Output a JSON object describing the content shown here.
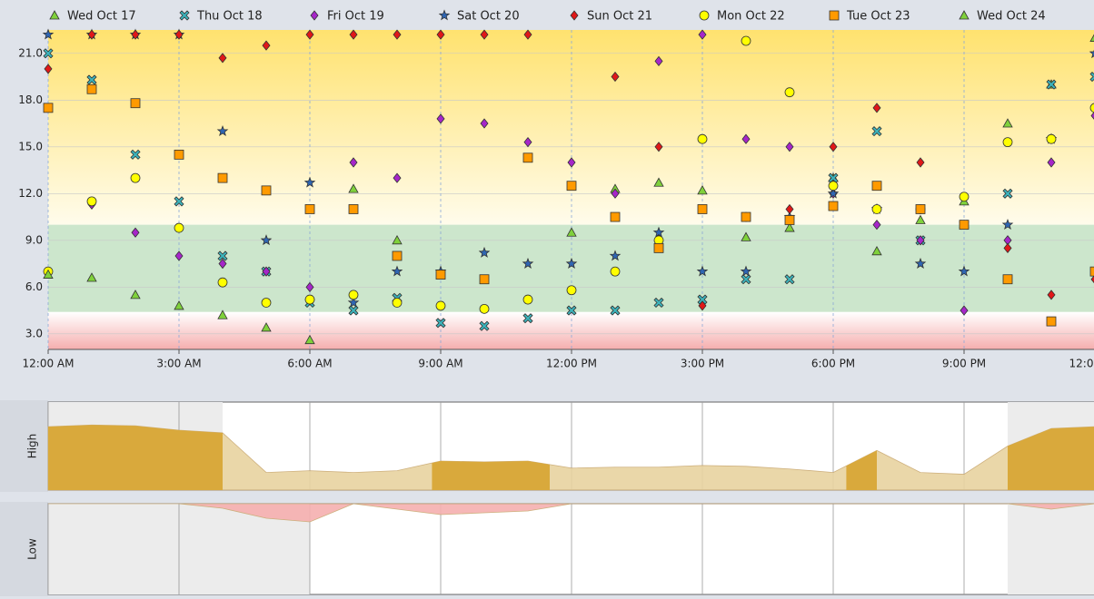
{
  "chart_data": [
    {
      "type": "scatter",
      "x": [
        0,
        1,
        2,
        3,
        4,
        5,
        6,
        7,
        8,
        9,
        10,
        11,
        12,
        13,
        14,
        15,
        16,
        17,
        18,
        19,
        20,
        21,
        22,
        23,
        24
      ],
      "xlim": [
        0,
        24
      ],
      "ylim": [
        2,
        22.5
      ],
      "xticks": [
        {
          "value": 0,
          "label": "12:00 AM"
        },
        {
          "value": 3,
          "label": "3:00 AM"
        },
        {
          "value": 6,
          "label": "6:00 AM"
        },
        {
          "value": 9,
          "label": "9:00 AM"
        },
        {
          "value": 12,
          "label": "12:00 PM"
        },
        {
          "value": 15,
          "label": "3:00 PM"
        },
        {
          "value": 18,
          "label": "6:00 PM"
        },
        {
          "value": 21,
          "label": "9:00 PM"
        },
        {
          "value": 24,
          "label": "12:00 AM"
        }
      ],
      "yticks": [
        {
          "value": 3,
          "label": "3.0"
        },
        {
          "value": 6,
          "label": "6.0"
        },
        {
          "value": 9,
          "label": "9.0"
        },
        {
          "value": 12,
          "label": "12.0"
        },
        {
          "value": 15,
          "label": "15.0"
        },
        {
          "value": 18,
          "label": "18.0"
        },
        {
          "value": 21,
          "label": "21.0"
        }
      ],
      "grid": true,
      "legend": "top",
      "bands": [
        {
          "range": [
            10,
            22.5
          ],
          "color": "#ffe375"
        },
        {
          "range": [
            4.4,
            10
          ],
          "color": "#c3e2c3"
        },
        {
          "range": [
            2,
            4.4
          ],
          "color": "#f7a8a8"
        }
      ],
      "series": [
        {
          "name": "Wed Oct 17",
          "color": "#7fd13b",
          "marker": "triangle",
          "values": [
            null,
            null,
            null,
            null,
            null,
            null,
            null,
            12.3,
            9,
            null,
            null,
            null,
            9.5,
            12.3,
            12.7,
            12.2,
            9.2,
            9.8,
            13,
            8.3,
            10.3,
            11.5,
            16.5,
            19,
            22
          ]
        },
        {
          "name": "Thu Oct 18",
          "color": "#3cb4bc",
          "marker": "x",
          "values": [
            21,
            19.3,
            14.5,
            11.5,
            8,
            7,
            5,
            4.5,
            5.3,
            3.7,
            3.5,
            4,
            4.5,
            4.5,
            5,
            5.2,
            6.5,
            6.5,
            13,
            16,
            9,
            10,
            12,
            19,
            19.5
          ]
        },
        {
          "name": "Fri Oct 19",
          "color": "#a626c9",
          "marker": "diamond",
          "values": [
            null,
            11.3,
            9.5,
            8,
            7.5,
            7,
            6,
            14,
            13,
            16.8,
            16.5,
            15.3,
            14,
            12,
            20.5,
            22.2,
            15.5,
            15,
            12,
            10,
            9,
            4.5,
            9,
            14,
            17
          ]
        },
        {
          "name": "Sat Oct 20",
          "color": "#2f66b4",
          "marker": "star",
          "values": [
            22.2,
            22.2,
            22.2,
            22.2,
            16,
            9,
            12.7,
            5,
            7,
            7,
            8.2,
            7.5,
            7.5,
            8,
            9.5,
            7,
            7,
            10.5,
            12,
            11,
            7.5,
            7,
            10,
            15.5,
            21
          ]
        },
        {
          "name": "Sun Oct 21",
          "color": "#e01818",
          "marker": "diamond",
          "values": [
            20,
            22.2,
            22.2,
            22.2,
            20.7,
            21.5,
            22.2,
            22.2,
            22.2,
            22.2,
            22.2,
            22.2,
            null,
            19.5,
            15,
            4.8,
            10.5,
            11,
            15,
            17.5,
            14,
            10,
            8.5,
            5.5,
            6.5
          ]
        },
        {
          "name": "Mon Oct 22",
          "color": "#ffff00",
          "marker": "circle",
          "values": [
            7,
            11.5,
            13,
            9.8,
            6.3,
            5,
            5.2,
            5.5,
            5,
            4.8,
            4.6,
            5.2,
            5.8,
            7,
            9,
            15.5,
            21.8,
            18.5,
            12.5,
            11,
            11,
            11.8,
            15.3,
            15.5,
            17.5
          ]
        },
        {
          "name": "Tue Oct 23",
          "color": "#ff9a00",
          "marker": "square",
          "values": [
            17.5,
            18.7,
            17.8,
            14.5,
            13,
            12.2,
            11,
            11,
            8,
            6.8,
            6.5,
            14.3,
            12.5,
            10.5,
            8.5,
            11,
            10.5,
            10.3,
            11.2,
            12.5,
            11,
            10,
            6.5,
            3.8,
            7
          ]
        },
        {
          "name": "Wed Oct 24",
          "color": "#7fd13b",
          "marker": "triangle",
          "values": [
            6.8,
            6.6,
            5.5,
            4.8,
            4.2,
            3.4,
            2.6,
            null,
            null,
            null,
            null,
            null,
            null,
            null,
            null,
            null,
            null,
            null,
            null,
            null,
            null,
            null,
            null,
            null,
            null
          ]
        }
      ]
    },
    {
      "type": "area",
      "y_label": "High",
      "direction": "up",
      "x": [
        0,
        1,
        2,
        3,
        4,
        5,
        6,
        7,
        8,
        9,
        10,
        11,
        12,
        13,
        14,
        15,
        16,
        17,
        18,
        19,
        20,
        21,
        22,
        23,
        24
      ],
      "values": [
        72,
        74,
        73,
        68,
        65,
        20,
        22,
        20,
        22,
        33,
        32,
        33,
        25,
        26,
        26,
        28,
        27,
        24,
        20,
        45,
        20,
        18,
        50,
        70,
        72
      ],
      "xlim": [
        0,
        24
      ],
      "ylim": [
        0,
        100
      ],
      "color": "#e8d3a0",
      "highlight_color": "#d9a93c",
      "shaded": [
        [
          0,
          4
        ],
        [
          22,
          24
        ]
      ],
      "highlight": [
        [
          0,
          4
        ],
        [
          8.8,
          11.5
        ],
        [
          18.3,
          19
        ],
        [
          22,
          24
        ]
      ]
    },
    {
      "type": "area",
      "y_label": "Low",
      "direction": "down",
      "x": [
        0,
        1,
        2,
        3,
        4,
        5,
        6,
        7,
        8,
        9,
        10,
        11,
        12,
        13,
        14,
        15,
        16,
        17,
        18,
        19,
        20,
        21,
        22,
        23,
        24
      ],
      "values": [
        0,
        0,
        0,
        0,
        5,
        16,
        20,
        0,
        6,
        12,
        10,
        8,
        0,
        0,
        0,
        0,
        0,
        0,
        0,
        0,
        0,
        0,
        0,
        6,
        0
      ],
      "xlim": [
        0,
        24
      ],
      "ylim": [
        0,
        100
      ],
      "color": "#f6b0b0",
      "shaded": [
        [
          0,
          6
        ],
        [
          22,
          24
        ]
      ]
    }
  ]
}
